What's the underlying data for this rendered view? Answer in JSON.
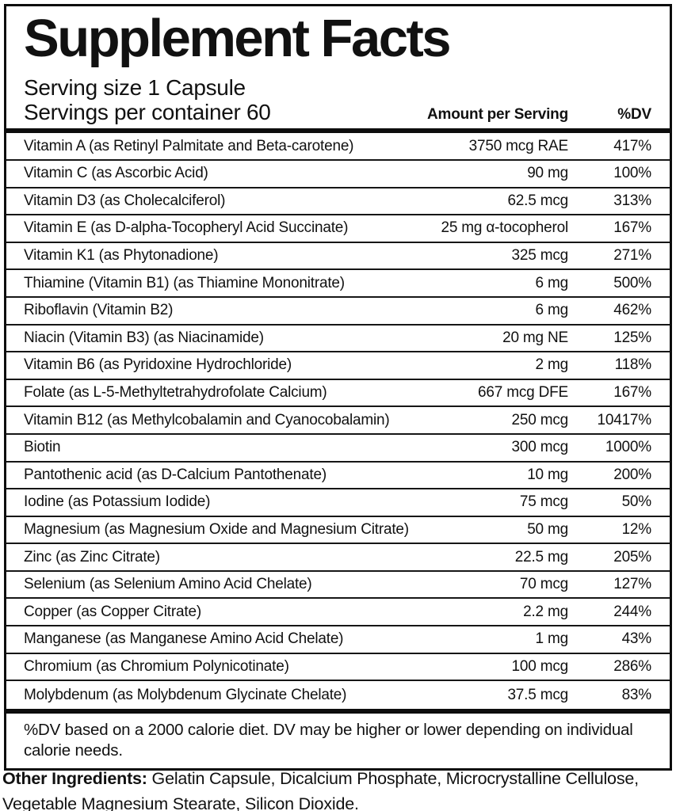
{
  "label": {
    "title": "Supplement Facts",
    "serving_size": "Serving size 1 Capsule",
    "servings_per_container": "Servings per container 60",
    "columns": {
      "amount": "Amount per Serving",
      "dv": "%DV"
    }
  },
  "rows": [
    {
      "name": "Vitamin A (as Retinyl Palmitate and Beta-carotene)",
      "amount": "3750 mcg RAE",
      "dv": "417%"
    },
    {
      "name": "Vitamin C (as Ascorbic Acid)",
      "amount": "90 mg",
      "dv": "100%"
    },
    {
      "name": "Vitamin D3 (as Cholecalciferol)",
      "amount": "62.5 mcg",
      "dv": "313%"
    },
    {
      "name": "Vitamin E (as D-alpha-Tocopheryl Acid Succinate)",
      "amount": "25 mg α-tocopherol",
      "dv": "167%"
    },
    {
      "name": "Vitamin K1 (as Phytonadione)",
      "amount": "325 mcg",
      "dv": "271%"
    },
    {
      "name": "Thiamine (Vitamin B1) (as Thiamine Mononitrate)",
      "amount": "6 mg",
      "dv": "500%"
    },
    {
      "name": "Riboflavin (Vitamin B2)",
      "amount": "6 mg",
      "dv": "462%"
    },
    {
      "name": "Niacin (Vitamin B3) (as Niacinamide)",
      "amount": "20 mg NE",
      "dv": "125%"
    },
    {
      "name": "Vitamin B6 (as Pyridoxine Hydrochloride)",
      "amount": "2 mg",
      "dv": "118%"
    },
    {
      "name": "Folate (as L-5-Methyltetrahydrofolate Calcium)",
      "amount": "667 mcg DFE",
      "dv": "167%"
    },
    {
      "name": "Vitamin B12 (as Methylcobalamin and Cyanocobalamin)",
      "amount": "250 mcg",
      "dv": "10417%"
    },
    {
      "name": "Biotin",
      "amount": "300 mcg",
      "dv": "1000%"
    },
    {
      "name": "Pantothenic acid (as D-Calcium Pantothenate)",
      "amount": "10 mg",
      "dv": "200%"
    },
    {
      "name": "Iodine (as Potassium Iodide)",
      "amount": "75 mcg",
      "dv": "50%"
    },
    {
      "name": "Magnesium (as Magnesium Oxide and Magnesium Citrate)",
      "amount": "50 mg",
      "dv": "12%"
    },
    {
      "name": "Zinc (as Zinc Citrate)",
      "amount": "22.5 mg",
      "dv": "205%"
    },
    {
      "name": "Selenium (as Selenium Amino Acid Chelate)",
      "amount": "70 mcg",
      "dv": "127%"
    },
    {
      "name": "Copper (as Copper Citrate)",
      "amount": "2.2 mg",
      "dv": "244%"
    },
    {
      "name": "Manganese (as Manganese Amino Acid Chelate)",
      "amount": "1 mg",
      "dv": "43%"
    },
    {
      "name": "Chromium (as Chromium Polynicotinate)",
      "amount": "100 mcg",
      "dv": "286%"
    },
    {
      "name": "Molybdenum (as Molybdenum Glycinate Chelate)",
      "amount": "37.5 mcg",
      "dv": "83%"
    }
  ],
  "footnote": "%DV based on a 2000 calorie diet. DV may be higher or lower depending on individual calorie needs.",
  "other_ingredients": {
    "label": "Other Ingredients:",
    "text": "Gelatin Capsule, Dicalcium Phosphate, Microcrystalline Cellulose, Vegetable Magnesium Stearate, Silicon Dioxide."
  },
  "colors": {
    "text": "#111111",
    "background": "#ffffff",
    "border": "#0d0d0d"
  }
}
